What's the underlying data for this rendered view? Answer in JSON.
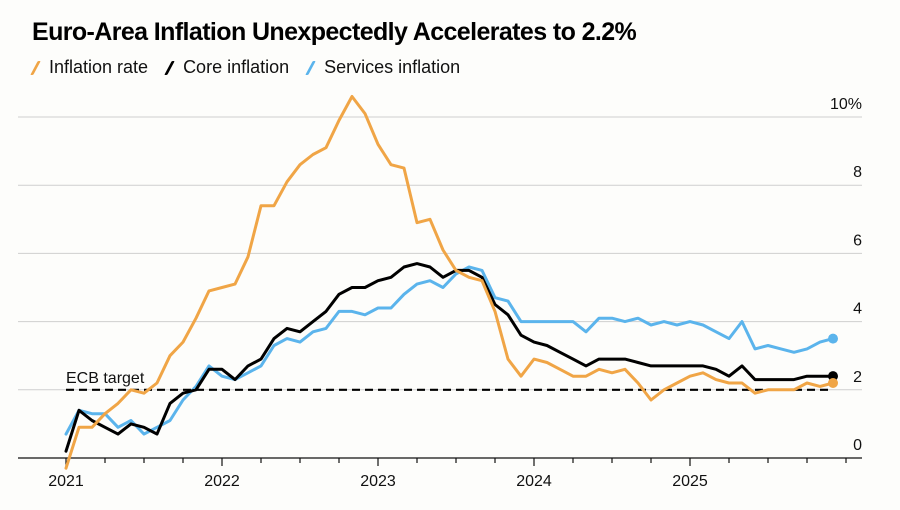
{
  "chart_data": {
    "type": "line",
    "title": "Euro-Area Inflation Unexpectedly Accelerates to 2.2%",
    "xlabel": "",
    "ylabel": "",
    "ylim": [
      0,
      10
    ],
    "y_ticks": [
      {
        "value": 0,
        "label": "0"
      },
      {
        "value": 2,
        "label": "2"
      },
      {
        "value": 4,
        "label": "4"
      },
      {
        "value": 6,
        "label": "6"
      },
      {
        "value": 8,
        "label": "8"
      },
      {
        "value": 10,
        "label": "10%"
      }
    ],
    "x_ticks": [
      {
        "month_index": 0,
        "label": "2021"
      },
      {
        "month_index": 12,
        "label": "2022"
      },
      {
        "month_index": 24,
        "label": "2023"
      },
      {
        "month_index": 36,
        "label": "2024"
      },
      {
        "month_index": 48,
        "label": "2025"
      }
    ],
    "x_minor_tick_every_months": 3,
    "x_start": "2020-12",
    "x_end": "2025-11",
    "grid": "horizontal",
    "y_axis_position": "right",
    "legend_position": "top-left",
    "reference_line": {
      "value": 2,
      "label": "ECB target",
      "style": "dashed",
      "color": "#000000"
    },
    "series": [
      {
        "name": "Inflation rate",
        "color": "#F0A546",
        "end_marker": true,
        "values": [
          -0.3,
          0.9,
          0.9,
          1.3,
          1.6,
          2.0,
          1.9,
          2.2,
          3.0,
          3.4,
          4.1,
          4.9,
          5.0,
          5.1,
          5.9,
          7.4,
          7.4,
          8.1,
          8.6,
          8.9,
          9.1,
          9.9,
          10.6,
          10.1,
          9.2,
          8.6,
          8.5,
          6.9,
          7.0,
          6.1,
          5.5,
          5.3,
          5.2,
          4.3,
          2.9,
          2.4,
          2.9,
          2.8,
          2.6,
          2.4,
          2.4,
          2.6,
          2.5,
          2.6,
          2.2,
          1.7,
          2.0,
          2.2,
          2.4,
          2.5,
          2.3,
          2.2,
          2.2,
          1.9,
          2.0,
          2.0,
          2.0,
          2.2,
          2.1,
          2.2
        ]
      },
      {
        "name": "Core inflation",
        "color": "#000000",
        "end_marker": true,
        "values": [
          0.2,
          1.4,
          1.1,
          0.9,
          0.7,
          1.0,
          0.9,
          0.7,
          1.6,
          1.9,
          2.0,
          2.6,
          2.6,
          2.3,
          2.7,
          2.9,
          3.5,
          3.8,
          3.7,
          4.0,
          4.3,
          4.8,
          5.0,
          5.0,
          5.2,
          5.3,
          5.6,
          5.7,
          5.6,
          5.3,
          5.5,
          5.5,
          5.3,
          4.5,
          4.2,
          3.6,
          3.4,
          3.3,
          3.1,
          2.9,
          2.7,
          2.9,
          2.9,
          2.9,
          2.8,
          2.7,
          2.7,
          2.7,
          2.7,
          2.7,
          2.6,
          2.4,
          2.7,
          2.3,
          2.3,
          2.3,
          2.3,
          2.4,
          2.4,
          2.4
        ]
      },
      {
        "name": "Services inflation",
        "color": "#5BB4EC",
        "end_marker": true,
        "values": [
          0.7,
          1.4,
          1.3,
          1.3,
          0.9,
          1.1,
          0.7,
          0.9,
          1.1,
          1.7,
          2.1,
          2.7,
          2.4,
          2.3,
          2.5,
          2.7,
          3.3,
          3.5,
          3.4,
          3.7,
          3.8,
          4.3,
          4.3,
          4.2,
          4.4,
          4.4,
          4.8,
          5.1,
          5.2,
          5.0,
          5.4,
          5.6,
          5.5,
          4.7,
          4.6,
          4.0,
          4.0,
          4.0,
          4.0,
          4.0,
          3.7,
          4.1,
          4.1,
          4.0,
          4.1,
          3.9,
          4.0,
          3.9,
          4.0,
          3.9,
          3.7,
          3.5,
          4.0,
          3.2,
          3.3,
          3.2,
          3.1,
          3.2,
          3.4,
          3.5
        ]
      }
    ]
  }
}
